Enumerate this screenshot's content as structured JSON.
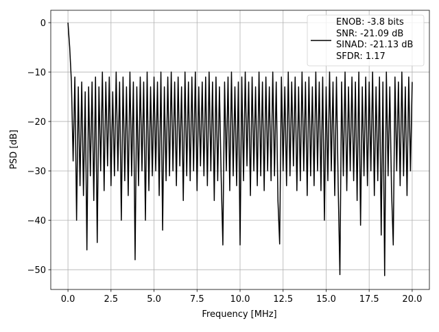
{
  "chart_data": {
    "type": "line",
    "xlabel": "Frequency [MHz]",
    "ylabel": "PSD [dB]",
    "xlim": [
      -1,
      21
    ],
    "ylim": [
      -54,
      2.5
    ],
    "xticks": [
      {
        "value": 0,
        "label": "0.0"
      },
      {
        "value": 2.5,
        "label": "2.5"
      },
      {
        "value": 5,
        "label": "5.0"
      },
      {
        "value": 7.5,
        "label": "7.5"
      },
      {
        "value": 10,
        "label": "10.0"
      },
      {
        "value": 12.5,
        "label": "12.5"
      },
      {
        "value": 15,
        "label": "15.0"
      },
      {
        "value": 17.5,
        "label": "17.5"
      },
      {
        "value": 20,
        "label": "20.0"
      }
    ],
    "yticks": [
      {
        "value": -50,
        "label": "−50"
      },
      {
        "value": -40,
        "label": "−40"
      },
      {
        "value": -30,
        "label": "−30"
      },
      {
        "value": -20,
        "label": "−20"
      },
      {
        "value": -10,
        "label": "−10"
      },
      0
    ],
    "grid": true,
    "legend": "upper right",
    "x": [
      0,
      0.1,
      0.2,
      0.3,
      0.4,
      0.5,
      0.6,
      0.7,
      0.8,
      0.9,
      1,
      1.1,
      1.2,
      1.3,
      1.4,
      1.5,
      1.6,
      1.7,
      1.8,
      1.9,
      2,
      2.1,
      2.2,
      2.3,
      2.4,
      2.5,
      2.6,
      2.7,
      2.8,
      2.9,
      3,
      3.1,
      3.2,
      3.3,
      3.4,
      3.5,
      3.6,
      3.7,
      3.8,
      3.9,
      4,
      4.1,
      4.2,
      4.3,
      4.4,
      4.5,
      4.6,
      4.7,
      4.8,
      4.9,
      5,
      5.1,
      5.2,
      5.3,
      5.4,
      5.5,
      5.6,
      5.7,
      5.8,
      5.9,
      6,
      6.1,
      6.2,
      6.3,
      6.4,
      6.5,
      6.6,
      6.7,
      6.8,
      6.9,
      7,
      7.1,
      7.2,
      7.3,
      7.4,
      7.5,
      7.6,
      7.7,
      7.8,
      7.9,
      8,
      8.1,
      8.2,
      8.3,
      8.4,
      8.5,
      8.6,
      8.7,
      8.8,
      8.9,
      9,
      9.1,
      9.2,
      9.3,
      9.4,
      9.5,
      9.6,
      9.7,
      9.8,
      9.9,
      10,
      10.1,
      10.2,
      10.3,
      10.4,
      10.5,
      10.6,
      10.7,
      10.8,
      10.9,
      11,
      11.1,
      11.2,
      11.3,
      11.4,
      11.5,
      11.6,
      11.7,
      11.8,
      11.9,
      12,
      12.1,
      12.2,
      12.3,
      12.4,
      12.5,
      12.6,
      12.7,
      12.8,
      12.9,
      13,
      13.1,
      13.2,
      13.3,
      13.4,
      13.5,
      13.6,
      13.7,
      13.8,
      13.9,
      14,
      14.1,
      14.2,
      14.3,
      14.4,
      14.5,
      14.6,
      14.7,
      14.8,
      14.9,
      15,
      15.1,
      15.2,
      15.3,
      15.4,
      15.5,
      15.6,
      15.7,
      15.8,
      15.9,
      16,
      16.1,
      16.2,
      16.3,
      16.4,
      16.5,
      16.6,
      16.7,
      16.8,
      16.9,
      17,
      17.1,
      17.2,
      17.3,
      17.4,
      17.5,
      17.6,
      17.7,
      17.8,
      17.9,
      18,
      18.1,
      18.2,
      18.3,
      18.4,
      18.5,
      18.6,
      18.7,
      18.8,
      18.9,
      19,
      19.1,
      19.2,
      19.3,
      19.4,
      19.5,
      19.6,
      19.7,
      19.8,
      19.9,
      20
    ],
    "series": [
      {
        "name": "ENOB: -3.8 bits\nSNR: -21.09 dB\nSINAD: -21.13 dB\nSFDR: 1.17",
        "color": "#000000",
        "values": [
          0,
          -5,
          -12,
          -28,
          -11,
          -40,
          -13,
          -33,
          -12,
          -35,
          -14,
          -46,
          -13,
          -31,
          -12,
          -36,
          -11,
          -44.5,
          -13,
          -30,
          -10,
          -34,
          -12,
          -29,
          -11,
          -33,
          -14,
          -31,
          -10,
          -30,
          -12,
          -40,
          -11,
          -32,
          -13,
          -35,
          -10,
          -31,
          -12,
          -48,
          -13,
          -33,
          -11,
          -30,
          -12,
          -40,
          -10,
          -34,
          -13,
          -31,
          -11,
          -30,
          -12,
          -35,
          -10,
          -42,
          -13,
          -32,
          -11,
          -31,
          -10,
          -30,
          -12,
          -33,
          -11,
          -29,
          -13,
          -36,
          -10,
          -31,
          -12,
          -32,
          -11,
          -30,
          -10,
          -34,
          -13,
          -29,
          -12,
          -31,
          -11,
          -33,
          -10,
          -30,
          -12,
          -36,
          -11,
          -32,
          -13,
          -31,
          -45,
          -12,
          -30,
          -11,
          -34,
          -10,
          -31,
          -13,
          -33,
          -12,
          -45,
          -11,
          -32,
          -10,
          -29,
          -12,
          -35,
          -11,
          -30,
          -13,
          -33,
          -10,
          -31,
          -12,
          -34,
          -11,
          -30,
          -13,
          -32,
          -10,
          -31,
          -12,
          -36,
          -44.8,
          -11,
          -30,
          -13,
          -33,
          -10,
          -31,
          -12,
          -29,
          -11,
          -34,
          -13,
          -32,
          -10,
          -30,
          -12,
          -35,
          -11,
          -31,
          -13,
          -33,
          -10,
          -30,
          -12,
          -34,
          -11,
          -40,
          -13,
          -32,
          -10,
          -30,
          -12,
          -35,
          -11,
          -33,
          -51,
          -12,
          -31,
          -10,
          -34,
          -13,
          -30,
          -11,
          -32,
          -12,
          -36,
          -10,
          -41,
          -13,
          -31,
          -11,
          -33,
          -12,
          -30,
          -10,
          -35,
          -13,
          -32,
          -11,
          -43,
          -12,
          -51.2,
          -10,
          -31,
          -13,
          -34,
          -45,
          -11,
          -30,
          -12,
          -33,
          -10,
          -31,
          -13,
          -35,
          -11,
          -30,
          -12
        ]
      }
    ]
  }
}
